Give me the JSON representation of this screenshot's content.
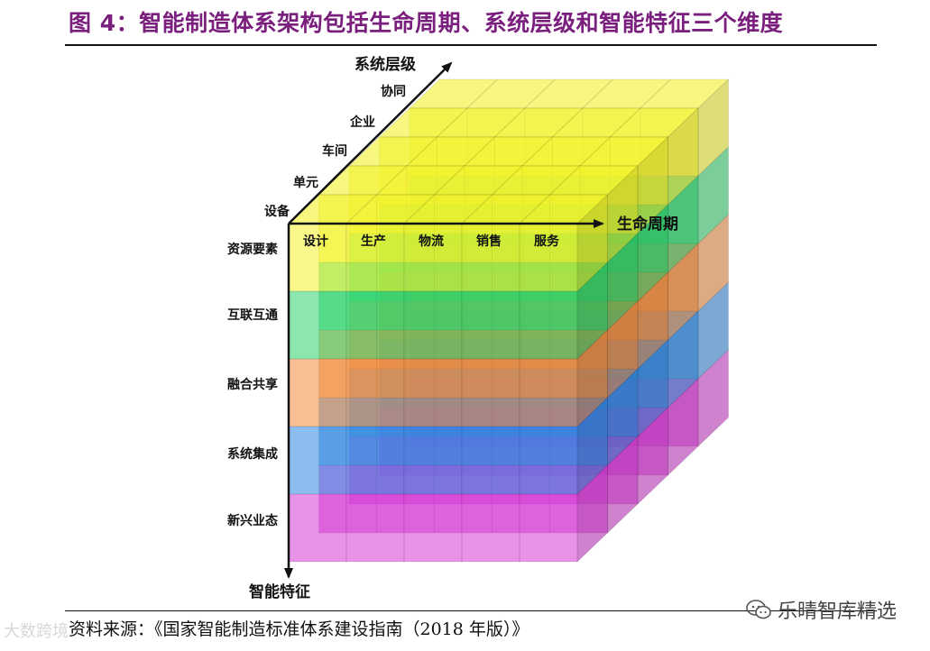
{
  "header": {
    "title": "图 4：智能制造体系架构包括生命周期、系统层级和智能特征三个维度"
  },
  "diagram": {
    "axes": {
      "system_level": {
        "title": "系统层级",
        "items": [
          "设备",
          "单元",
          "车间",
          "企业",
          "协同"
        ]
      },
      "life_cycle": {
        "title": "生命周期",
        "items": [
          "设计",
          "生产",
          "物流",
          "销售",
          "服务"
        ]
      },
      "intelligent_feature": {
        "title": "智能特征",
        "items": [
          "资源要素",
          "互联互通",
          "融合共享",
          "系统集成",
          "新兴业态"
        ]
      }
    },
    "layer_colors": [
      "#f2f22a",
      "#2bd36a",
      "#f08a3a",
      "#2f86e0",
      "#d63ad6"
    ]
  },
  "footer": {
    "source": "资料来源：《国家智能制造标准体系建设指南（2018 年版）》"
  },
  "watermarks": {
    "left": "大数跨境",
    "right": "乐晴智库精选"
  }
}
